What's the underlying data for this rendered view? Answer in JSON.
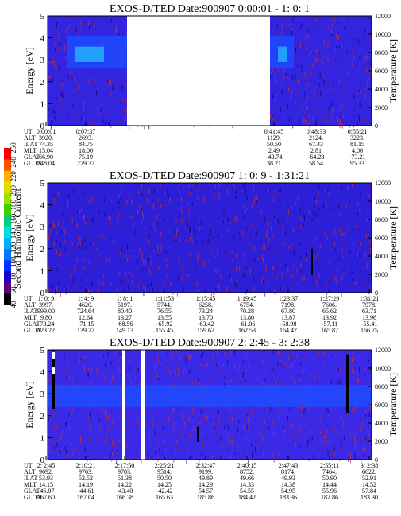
{
  "colorbar": {
    "label": "Second Harmonic Current",
    "ticks": [
      "40",
      "60",
      "80",
      "100",
      "120",
      "140",
      "160",
      "180",
      "200",
      "220",
      "240",
      "250"
    ],
    "colors": [
      "#000000",
      "#5a007a",
      "#1a00c8",
      "#0033ff",
      "#0077ff",
      "#00b0ff",
      "#00e0e0",
      "#00d080",
      "#40d000",
      "#a0e000",
      "#e0e000",
      "#ffb000",
      "#ff5000",
      "#ff0000"
    ]
  },
  "chart_data": [
    {
      "type": "heatmap",
      "title": "EXOS-D/TED   Date:900907   0:00:01 - 1: 0: 1",
      "ylabel": "Energy [eV]",
      "y2label": "Temperature [K]",
      "ylim": [
        0,
        5
      ],
      "y2lim": [
        0,
        12000
      ],
      "yticks": [
        "0",
        "1",
        "2",
        "3",
        "4",
        "5"
      ],
      "y2ticks": [
        "0",
        "2000",
        "4000",
        "6000",
        "8000",
        "10000",
        "12000"
      ],
      "data_gaps": [
        "0:07:37 - 0:41:45"
      ],
      "orbit_labels": [
        "UT",
        "ALT",
        "ILAT",
        "MLT",
        "GLAT",
        "GLON"
      ],
      "orbit_columns": [
        {
          "values": [
            "0:00:01",
            "3920.",
            "74.35",
            "15.04",
            "66.90",
            "248.04"
          ]
        },
        {
          "values": [
            "0:07:37",
            "2693.",
            "84.75",
            "18.00",
            "75.19",
            "279.37"
          ]
        },
        {
          "values": [
            "0:41:45",
            "1129.",
            "50.50",
            "2.49",
            "-43.74",
            "38.21"
          ]
        },
        {
          "values": [
            "0:48:33",
            "2124.",
            "67.43",
            "2.81",
            "-64.28",
            "58.54"
          ]
        },
        {
          "values": [
            "0:55:21",
            "3223.",
            "81.15",
            "4.00",
            "-73.21",
            "95.33"
          ]
        }
      ]
    },
    {
      "type": "heatmap",
      "title": "EXOS-D/TED   Date:900907   1: 0: 9 - 1:31:21",
      "ylabel": "Energy [eV]",
      "y2label": "Temperature [K]",
      "ylim": [
        0,
        5
      ],
      "y2lim": [
        0,
        12000
      ],
      "yticks": [
        "0",
        "1",
        "2",
        "3",
        "4",
        "5"
      ],
      "y2ticks": [
        "0",
        "2000",
        "4000",
        "6000",
        "8000",
        "10000",
        "12000"
      ],
      "orbit_labels": [
        "UT",
        "ALT",
        "ILAT",
        "MLT",
        "GLAT",
        "GLON"
      ],
      "orbit_columns": [
        {
          "values": [
            "1: 0: 9",
            "3997.",
            "999.00",
            "9.80",
            "-73.24",
            "123.22"
          ]
        },
        {
          "values": [
            "1: 4: 9",
            "4620.",
            "724.64",
            "12.64",
            "-71.15",
            "139.27"
          ]
        },
        {
          "values": [
            "1: 8: 1",
            "5197.",
            "80.40",
            "13.27",
            "-68.56",
            "149.13"
          ]
        },
        {
          "values": [
            "1:11:53",
            "5744.",
            "76.55",
            "13.55",
            "-65.92",
            "155.45"
          ]
        },
        {
          "values": [
            "1:15:45",
            "6258.",
            "73.24",
            "13.70",
            "-63.42",
            "159.62"
          ]
        },
        {
          "values": [
            "1:19:45",
            "6754.",
            "70.28",
            "13.80",
            "-61.06",
            "162.53"
          ]
        },
        {
          "values": [
            "1:23:37",
            "7198.",
            "67.80",
            "13.87",
            "-58.98",
            "164.47"
          ]
        },
        {
          "values": [
            "1:27:29",
            "7606.",
            "65.62",
            "13.92",
            "-57.11",
            "165.82"
          ]
        },
        {
          "values": [
            "1:31:21",
            "7978.",
            "63.71",
            "13.96",
            "-55.41",
            "166.75"
          ]
        }
      ]
    },
    {
      "type": "heatmap",
      "title": "EXOS-D/TED   Date:900907   2: 2:45 - 3: 2:38",
      "ylabel": "Energy [eV]",
      "y2label": "Temperature [K]",
      "ylim": [
        0,
        5
      ],
      "y2lim": [
        0,
        12000
      ],
      "yticks": [
        "0",
        "1",
        "2",
        "3",
        "4",
        "5"
      ],
      "y2ticks": [
        "0",
        "2000",
        "4000",
        "6000",
        "8000",
        "10000",
        "12000"
      ],
      "orbit_labels": [
        "UT",
        "ALT",
        "ILAT",
        "MLT",
        "GLAT",
        "GLON"
      ],
      "orbit_columns": [
        {
          "values": [
            "2: 2:45",
            "9692.",
            "53.93",
            "14.15",
            "-46.07",
            "167.60"
          ]
        },
        {
          "values": [
            "2:10:21",
            "9763.",
            "52.52",
            "14.19",
            "-44.61",
            "167.04"
          ]
        },
        {
          "values": [
            "2:17:50",
            "9703.",
            "51.38",
            "14.22",
            "-43.40",
            "166.38"
          ]
        },
        {
          "values": [
            "2:25:21",
            "9514.",
            "50.50",
            "14.25",
            "-42.42",
            "165.63"
          ]
        },
        {
          "values": [
            "2:32:47",
            "9199.",
            "49.89",
            "14.29",
            "54.57",
            "185.86"
          ]
        },
        {
          "values": [
            "2:40:15",
            "8752.",
            "49.66",
            "14.33",
            "54.55",
            "184.42"
          ]
        },
        {
          "values": [
            "2:47:43",
            "8174.",
            "49.93",
            "14.38",
            "54.95",
            "183.36"
          ]
        },
        {
          "values": [
            "2:55:11",
            "7464.",
            "50.90",
            "14.44",
            "55.96",
            "182.86"
          ]
        },
        {
          "values": [
            "3: 2:38",
            "6622.",
            "52.91",
            "14.52",
            "57.84",
            "183.30"
          ]
        }
      ]
    }
  ]
}
